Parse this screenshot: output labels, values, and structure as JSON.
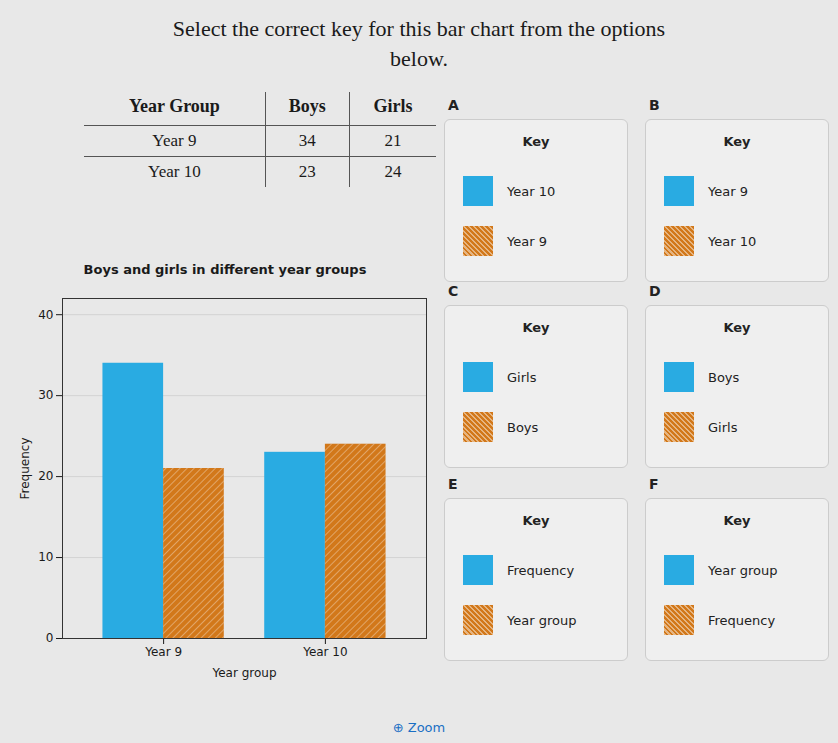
{
  "chart_data": {
    "type": "bar",
    "title": "Boys and girls in different year groups",
    "xlabel": "Year group",
    "ylabel": "Frequency",
    "categories": [
      "Year 9",
      "Year 10"
    ],
    "series": [
      {
        "name": "Boys",
        "color": "#29ABE2",
        "values": [
          34,
          23
        ]
      },
      {
        "name": "Girls",
        "color": "#D2781A",
        "values": [
          21,
          24
        ]
      }
    ],
    "ylim": [
      0,
      42
    ],
    "yticks": [
      0,
      10,
      20,
      30,
      40
    ],
    "grid": true,
    "annotations": {
      "heading": [
        "Select the correct key for this bar chart from the options",
        "below."
      ],
      "table": {
        "headers": [
          "Year Group",
          "Boys",
          "Girls"
        ],
        "rows": [
          [
            "Year 9",
            "34",
            "21"
          ],
          [
            "Year 10",
            "23",
            "24"
          ]
        ]
      },
      "keys": [
        {
          "letter": "A",
          "label": "Key",
          "items": [
            {
              "text": "Year 10",
              "series": "Boys"
            },
            {
              "text": "Year 9",
              "series": "Girls"
            }
          ]
        },
        {
          "letter": "B",
          "label": "Key",
          "items": [
            {
              "text": "Year 9",
              "series": "Boys"
            },
            {
              "text": "Year 10",
              "series": "Girls"
            }
          ]
        },
        {
          "letter": "C",
          "label": "Key",
          "items": [
            {
              "text": "Girls",
              "series": "Boys"
            },
            {
              "text": "Boys",
              "series": "Girls"
            }
          ]
        },
        {
          "letter": "D",
          "label": "Key",
          "items": [
            {
              "text": "Boys",
              "series": "Boys"
            },
            {
              "text": "Girls",
              "series": "Girls"
            }
          ]
        },
        {
          "letter": "E",
          "label": "Key",
          "items": [
            {
              "text": "Frequency",
              "series": "Boys"
            },
            {
              "text": "Year group",
              "series": "Girls"
            }
          ]
        },
        {
          "letter": "F",
          "label": "Key",
          "items": [
            {
              "text": "Year group",
              "series": "Boys"
            },
            {
              "text": "Frequency",
              "series": "Girls"
            }
          ]
        }
      ],
      "button": "⊕ Zoom"
    }
  }
}
